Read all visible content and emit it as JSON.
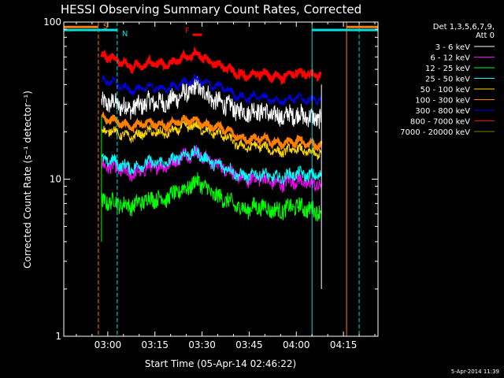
{
  "chart_data": {
    "type": "line",
    "title": "HESSI Observing Summary Count Rates, Corrected",
    "xlabel": "Start Time (05-Apr-14 02:46:22)",
    "ylabel": "Corrected Count Rate (s⁻¹ detector⁻¹)",
    "yscale": "log",
    "ylim": [
      1,
      100
    ],
    "xlim": [
      "02:46",
      "04:26"
    ],
    "x_ticks": [
      "03:00",
      "03:15",
      "03:30",
      "03:45",
      "04:00",
      "04:15"
    ],
    "y_ticks": [
      "1",
      "10",
      "100"
    ],
    "legend_placement": "right",
    "legend_header": [
      "Det 1,3,5,6,7,9,",
      "Att 0"
    ],
    "footer": "5-Apr-2014 11:39",
    "data_start": "02:58",
    "data_end": "04:08",
    "vertical_markers": [
      {
        "x": "02:57",
        "color": "#ff8000",
        "style": "dashed"
      },
      {
        "x": "03:03",
        "color": "#00e0e0",
        "style": "dashed"
      },
      {
        "x": "04:05",
        "color": "#00e0e0",
        "style": "solid"
      },
      {
        "x": "04:16",
        "color": "#ff8000",
        "style": "solid"
      },
      {
        "x": "04:20",
        "color": "#00e0e0",
        "style": "dashed"
      }
    ],
    "flag_bars": [
      {
        "label": "S",
        "color": "#ff8000",
        "segments": [
          [
            "02:46",
            "02:57"
          ],
          [
            "04:16",
            "04:26"
          ]
        ],
        "y": 93
      },
      {
        "label": "N",
        "color": "#00e0e0",
        "segments": [
          [
            "02:46",
            "03:03"
          ],
          [
            "04:05",
            "04:26"
          ]
        ],
        "y": 89
      },
      {
        "label": "F",
        "color": "#ff0000",
        "segments": [
          [
            "03:27",
            "03:30"
          ]
        ],
        "y": 83
      }
    ],
    "x_anchor": [
      "02:58",
      "03:10",
      "03:25",
      "03:29",
      "03:35",
      "03:45",
      "04:00",
      "04:08"
    ],
    "series": [
      {
        "name": "3 - 6 keV",
        "color": "#ffffff",
        "noise": 0.14,
        "values": [
          30,
          29,
          34,
          40,
          30,
          27,
          25,
          25
        ]
      },
      {
        "name": "6 - 12 keV",
        "color": "#ff00ff",
        "noise": 0.1,
        "values": [
          12,
          11,
          14,
          15,
          12,
          10,
          9.5,
          9.5
        ]
      },
      {
        "name": "12 - 25 keV",
        "color": "#00ff00",
        "noise": 0.12,
        "values": [
          7,
          7,
          8.5,
          10,
          7.5,
          6.5,
          6.5,
          6.5
        ]
      },
      {
        "name": "25 - 50 keV",
        "color": "#00ffff",
        "noise": 0.08,
        "values": [
          13,
          12,
          14,
          15,
          12,
          10.5,
          10.5,
          11
        ]
      },
      {
        "name": "50 - 100 keV",
        "color": "#ffd700",
        "noise": 0.06,
        "values": [
          20,
          19,
          21,
          22,
          19,
          16,
          15,
          15
        ]
      },
      {
        "name": "100 - 300 keV",
        "color": "#ff8000",
        "noise": 0.03,
        "values": [
          24,
          22,
          23,
          24,
          21,
          18,
          17,
          17
        ]
      },
      {
        "name": "300 - 800 keV",
        "color": "#0000ff",
        "noise": 0.05,
        "values": [
          42,
          37,
          40,
          44,
          38,
          33,
          32,
          33
        ]
      },
      {
        "name": "800 - 7000 keV",
        "color": "#ff0000",
        "noise": 0.04,
        "values": [
          60,
          52,
          58,
          64,
          52,
          46,
          46,
          48
        ]
      },
      {
        "name": "7000 - 20000 keV",
        "color": "#808000",
        "noise": 0.0,
        "values": []
      }
    ]
  }
}
